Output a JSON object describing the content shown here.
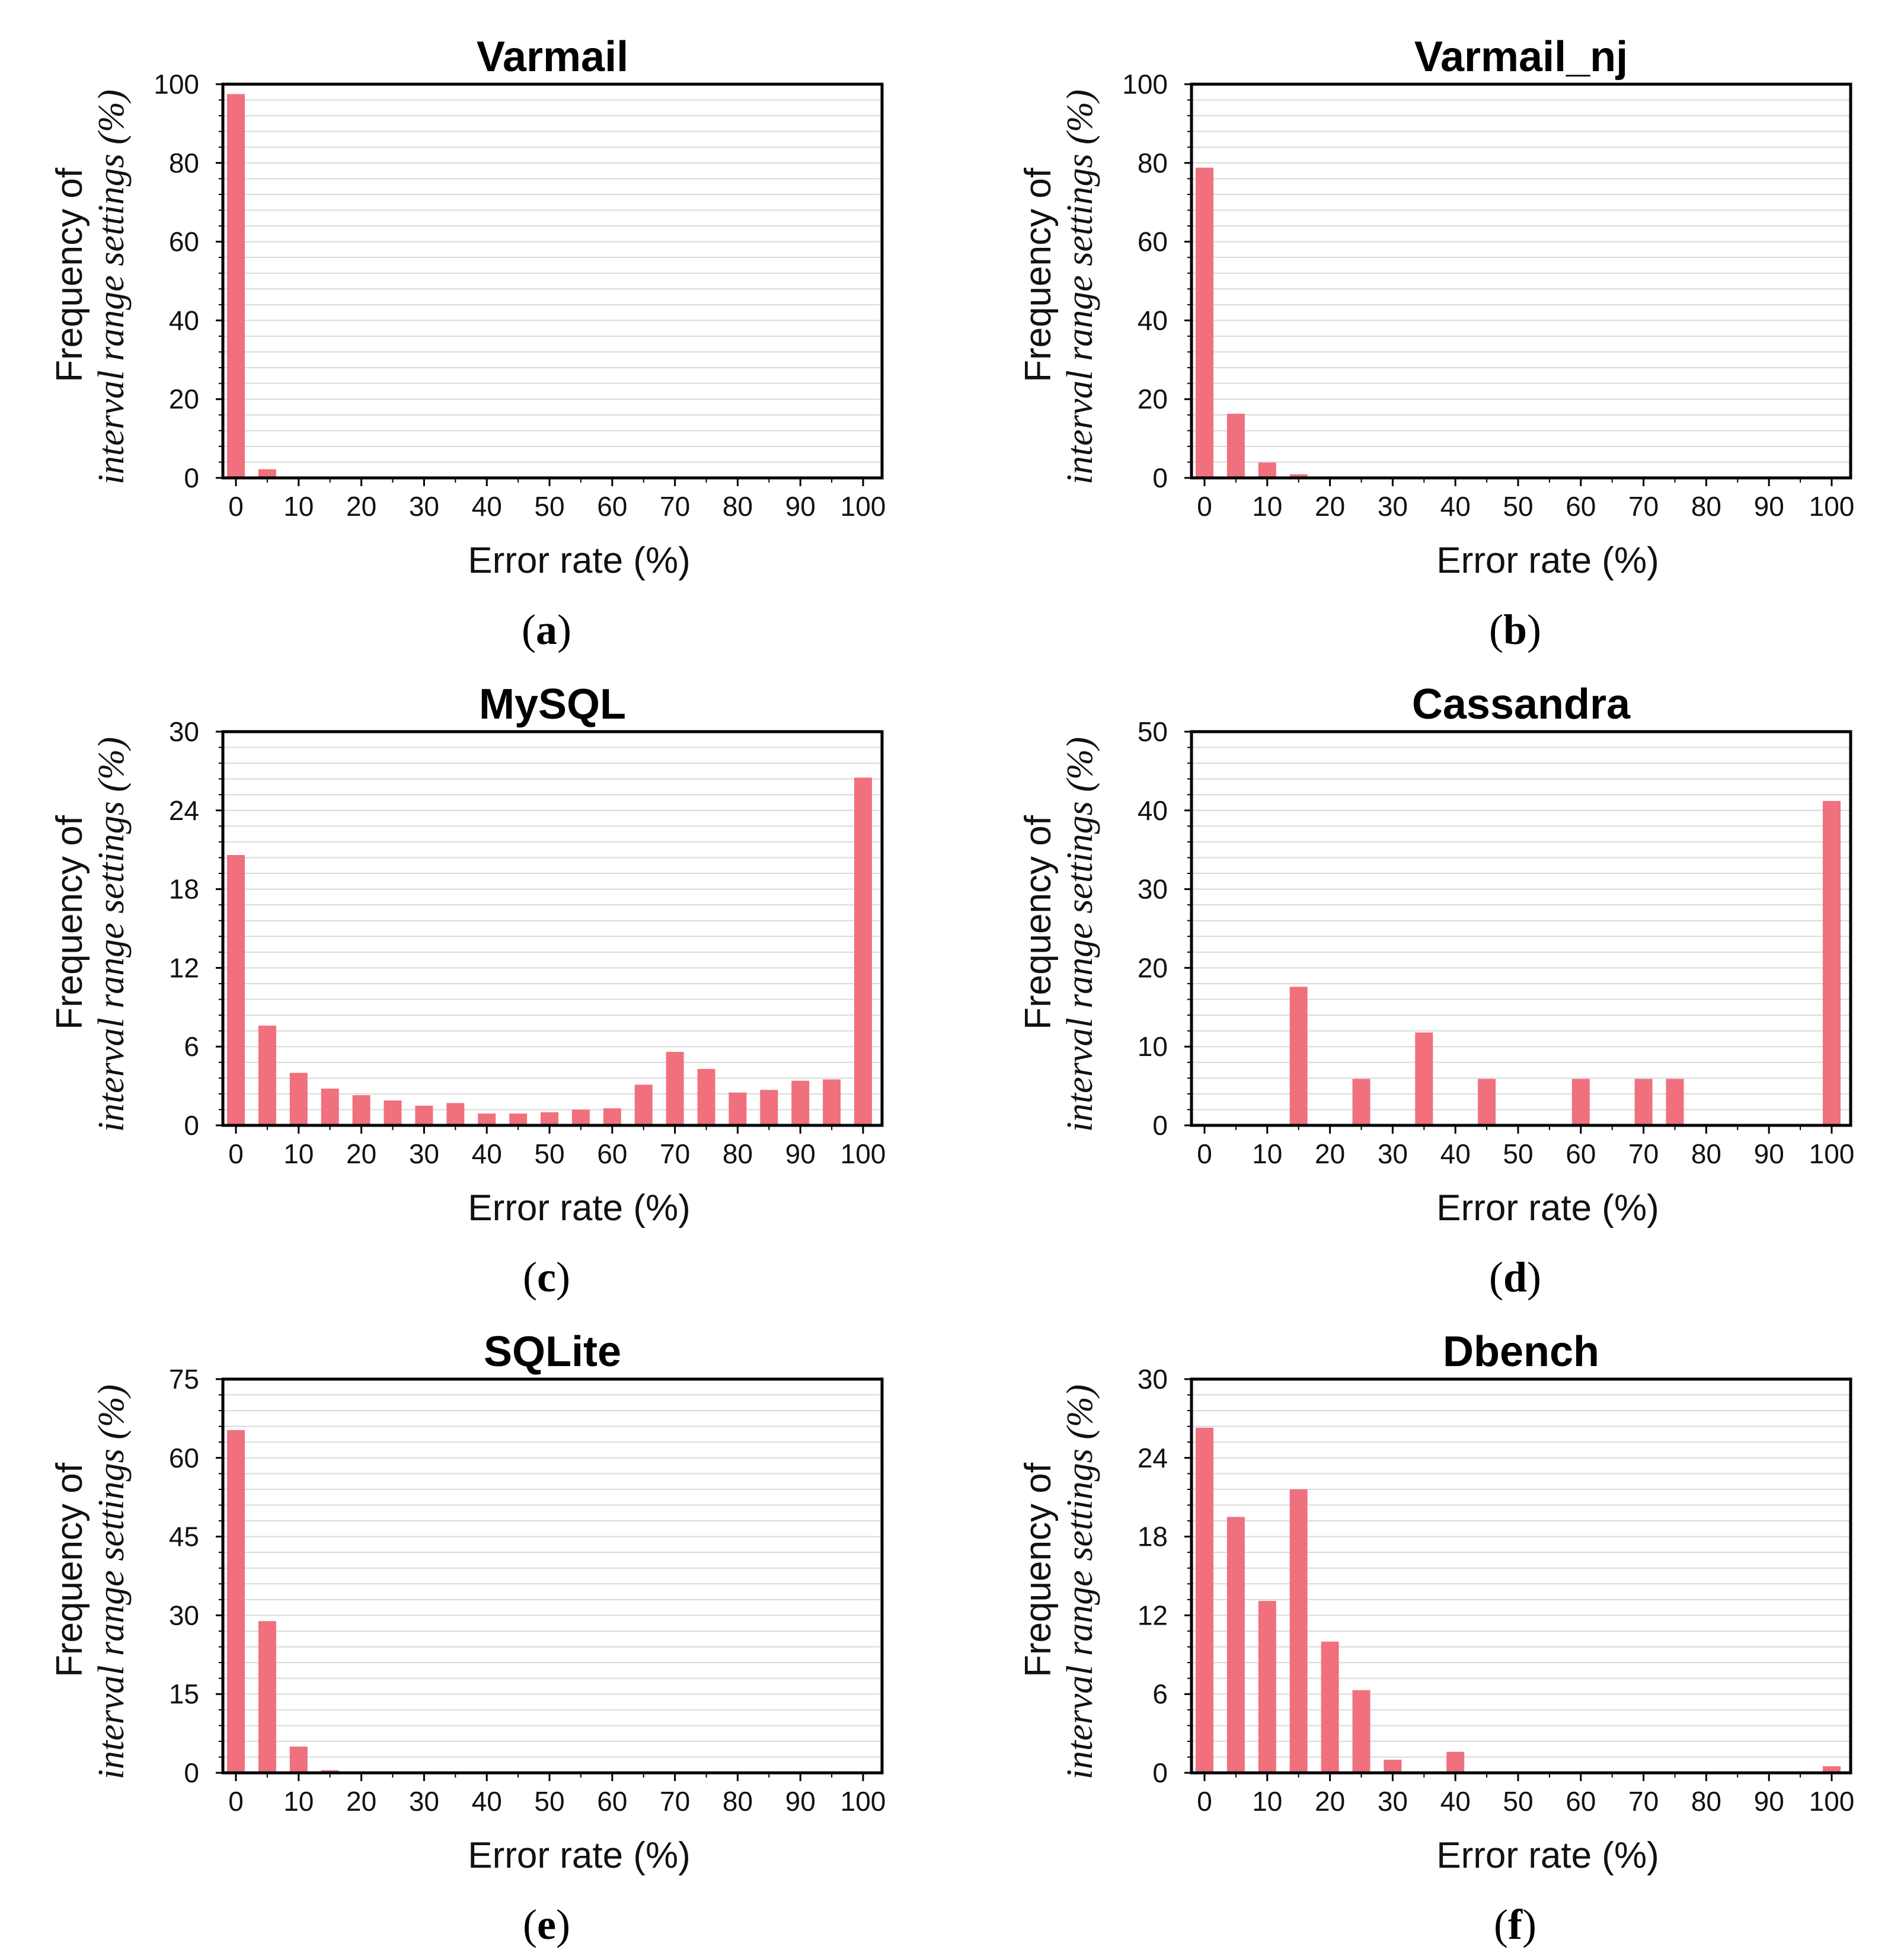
{
  "figure": {
    "bar_color": "#F0707E",
    "grid_color": "#D9D9D9",
    "axis_color": "#000000"
  },
  "chart_data": [
    {
      "type": "bar",
      "panel_letter": "a",
      "title": "Varmail",
      "xlabel": "Error rate (%)",
      "ylabel_line1": "Frequency of",
      "ylabel_line2": "interval range settings (%)",
      "ylim": [
        0,
        100
      ],
      "yticks": [
        "0",
        "20",
        "40",
        "60",
        "80",
        "100"
      ],
      "xticks": [
        "0",
        "10",
        "20",
        "30",
        "40",
        "50",
        "60",
        "70",
        "80",
        "90",
        "100"
      ],
      "x": [
        0,
        5
      ],
      "values": [
        97.5,
        2.2
      ]
    },
    {
      "type": "bar",
      "panel_letter": "b",
      "title": "Varmail_nj",
      "xlabel": "Error rate (%)",
      "ylabel_line1": "Frequency of",
      "ylabel_line2": "interval range settings (%)",
      "ylim": [
        0,
        100
      ],
      "yticks": [
        "0",
        "20",
        "40",
        "60",
        "80",
        "100"
      ],
      "xticks": [
        "0",
        "10",
        "20",
        "30",
        "40",
        "50",
        "60",
        "70",
        "80",
        "90",
        "100"
      ],
      "x": [
        0,
        5,
        10,
        15,
        20
      ],
      "values": [
        78.8,
        16.3,
        3.9,
        0.9,
        0.3
      ]
    },
    {
      "type": "bar",
      "panel_letter": "c",
      "title": "MySQL",
      "xlabel": "Error rate (%)",
      "ylabel_line1": "Frequency of",
      "ylabel_line2": "interval range settings (%)",
      "ylim": [
        0,
        30
      ],
      "yticks": [
        "0",
        "6",
        "12",
        "18",
        "24",
        "30"
      ],
      "xticks": [
        "0",
        "10",
        "20",
        "30",
        "40",
        "50",
        "60",
        "70",
        "80",
        "90",
        "100"
      ],
      "x": [
        0,
        5,
        10,
        15,
        20,
        25,
        30,
        35,
        40,
        45,
        50,
        55,
        60,
        65,
        70,
        75,
        80,
        85,
        90,
        95,
        100
      ],
      "values": [
        20.6,
        7.6,
        4.0,
        2.8,
        2.3,
        1.9,
        1.5,
        1.7,
        0.9,
        0.9,
        1.0,
        1.2,
        1.3,
        3.1,
        5.6,
        4.3,
        2.5,
        2.7,
        3.4,
        3.5,
        26.5
      ]
    },
    {
      "type": "bar",
      "panel_letter": "d",
      "title": "Cassandra",
      "xlabel": "Error rate (%)",
      "ylabel_line1": "Frequency of",
      "ylabel_line2": "interval range settings (%)",
      "ylim": [
        0,
        50
      ],
      "yticks": [
        "0",
        "10",
        "20",
        "30",
        "40",
        "50"
      ],
      "xticks": [
        "0",
        "10",
        "20",
        "30",
        "40",
        "50",
        "60",
        "70",
        "80",
        "90",
        "100"
      ],
      "x": [
        15,
        25,
        35,
        45,
        60,
        70,
        75,
        100
      ],
      "values": [
        17.6,
        5.9,
        11.8,
        5.9,
        5.9,
        5.9,
        5.9,
        41.2
      ]
    },
    {
      "type": "bar",
      "panel_letter": "e",
      "title": "SQLite",
      "xlabel": "Error rate (%)",
      "ylabel_line1": "Frequency of",
      "ylabel_line2": "interval range settings (%)",
      "ylim": [
        0,
        75
      ],
      "yticks": [
        "0",
        "15",
        "30",
        "45",
        "60",
        "75"
      ],
      "xticks": [
        "0",
        "10",
        "20",
        "30",
        "40",
        "50",
        "60",
        "70",
        "80",
        "90",
        "100"
      ],
      "x": [
        0,
        5,
        10,
        15
      ],
      "values": [
        65.3,
        28.9,
        5.0,
        0.5
      ]
    },
    {
      "type": "bar",
      "panel_letter": "f",
      "title": "Dbench",
      "xlabel": "Error rate (%)",
      "ylabel_line1": "Frequency of",
      "ylabel_line2": "interval range settings (%)",
      "ylim": [
        0,
        30
      ],
      "yticks": [
        "0",
        "6",
        "12",
        "18",
        "24",
        "30"
      ],
      "xticks": [
        "0",
        "10",
        "20",
        "30",
        "40",
        "50",
        "60",
        "70",
        "80",
        "90",
        "100"
      ],
      "x": [
        0,
        5,
        10,
        15,
        20,
        25,
        30,
        40,
        100
      ],
      "values": [
        26.3,
        19.5,
        13.1,
        21.6,
        10.0,
        6.3,
        1.0,
        1.6,
        0.5
      ]
    }
  ]
}
